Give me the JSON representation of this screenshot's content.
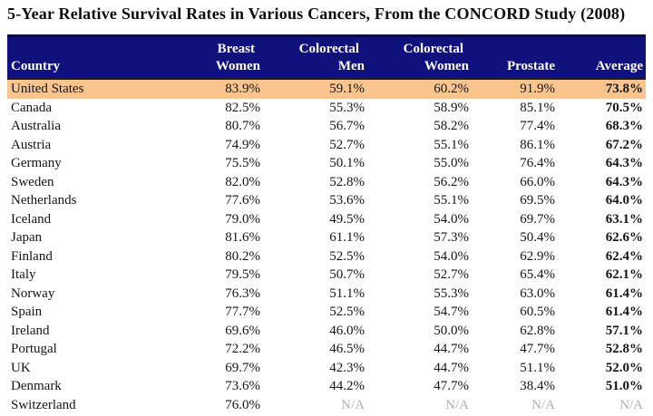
{
  "title": "5-Year Relative Survival Rates in Various Cancers, From the CONCORD Study (2008)",
  "colors": {
    "header_bg": "#11117E",
    "header_text": "#FFFFFF",
    "highlight_row_bg": "#F9C48D",
    "body_text": "#151515",
    "na_text": "#B0B0B0"
  },
  "chart_data": {
    "type": "table",
    "title": "5-Year Relative Survival Rates in Various Cancers, From the CONCORD Study (2008)",
    "header_lines": [
      [
        "Country"
      ],
      [
        "Breast",
        "Women"
      ],
      [
        "Colorectal",
        "Men"
      ],
      [
        "Colorectal",
        "Women"
      ],
      [
        "Prostate"
      ],
      [
        "Average"
      ]
    ],
    "highlighted_row": "United States",
    "rows": [
      {
        "country": "United States",
        "breast_women": "83.9%",
        "colorectal_men": "59.1%",
        "colorectal_women": "60.2%",
        "prostate": "91.9%",
        "average": "73.8%",
        "highlight": true
      },
      {
        "country": "Canada",
        "breast_women": "82.5%",
        "colorectal_men": "55.3%",
        "colorectal_women": "58.9%",
        "prostate": "85.1%",
        "average": "70.5%"
      },
      {
        "country": "Australia",
        "breast_women": "80.7%",
        "colorectal_men": "56.7%",
        "colorectal_women": "58.2%",
        "prostate": "77.4%",
        "average": "68.3%"
      },
      {
        "country": "Austria",
        "breast_women": "74.9%",
        "colorectal_men": "52.7%",
        "colorectal_women": "55.1%",
        "prostate": "86.1%",
        "average": "67.2%"
      },
      {
        "country": "Germany",
        "breast_women": "75.5%",
        "colorectal_men": "50.1%",
        "colorectal_women": "55.0%",
        "prostate": "76.4%",
        "average": "64.3%"
      },
      {
        "country": "Sweden",
        "breast_women": "82.0%",
        "colorectal_men": "52.8%",
        "colorectal_women": "56.2%",
        "prostate": "66.0%",
        "average": "64.3%"
      },
      {
        "country": "Netherlands",
        "breast_women": "77.6%",
        "colorectal_men": "53.6%",
        "colorectal_women": "55.1%",
        "prostate": "69.5%",
        "average": "64.0%"
      },
      {
        "country": "Iceland",
        "breast_women": "79.0%",
        "colorectal_men": "49.5%",
        "colorectal_women": "54.0%",
        "prostate": "69.7%",
        "average": "63.1%"
      },
      {
        "country": "Japan",
        "breast_women": "81.6%",
        "colorectal_men": "61.1%",
        "colorectal_women": "57.3%",
        "prostate": "50.4%",
        "average": "62.6%"
      },
      {
        "country": "Finland",
        "breast_women": "80.2%",
        "colorectal_men": "52.5%",
        "colorectal_women": "54.0%",
        "prostate": "62.9%",
        "average": "62.4%"
      },
      {
        "country": "Italy",
        "breast_women": "79.5%",
        "colorectal_men": "50.7%",
        "colorectal_women": "52.7%",
        "prostate": "65.4%",
        "average": "62.1%"
      },
      {
        "country": "Norway",
        "breast_women": "76.3%",
        "colorectal_men": "51.1%",
        "colorectal_women": "55.3%",
        "prostate": "63.0%",
        "average": "61.4%"
      },
      {
        "country": "Spain",
        "breast_women": "77.7%",
        "colorectal_men": "52.5%",
        "colorectal_women": "54.7%",
        "prostate": "60.5%",
        "average": "61.4%"
      },
      {
        "country": "Ireland",
        "breast_women": "69.6%",
        "colorectal_men": "46.0%",
        "colorectal_women": "50.0%",
        "prostate": "62.8%",
        "average": "57.1%"
      },
      {
        "country": "Portugal",
        "breast_women": "72.2%",
        "colorectal_men": "46.5%",
        "colorectal_women": "44.7%",
        "prostate": "47.7%",
        "average": "52.8%"
      },
      {
        "country": "UK",
        "breast_women": "69.7%",
        "colorectal_men": "42.3%",
        "colorectal_women": "44.7%",
        "prostate": "51.1%",
        "average": "52.0%"
      },
      {
        "country": "Denmark",
        "breast_women": "73.6%",
        "colorectal_men": "44.2%",
        "colorectal_women": "47.7%",
        "prostate": "38.4%",
        "average": "51.0%"
      },
      {
        "country": "Switzerland",
        "breast_women": "76.0%",
        "colorectal_men": "N/A",
        "colorectal_women": "N/A",
        "prostate": "N/A",
        "average": "N/A"
      }
    ]
  }
}
